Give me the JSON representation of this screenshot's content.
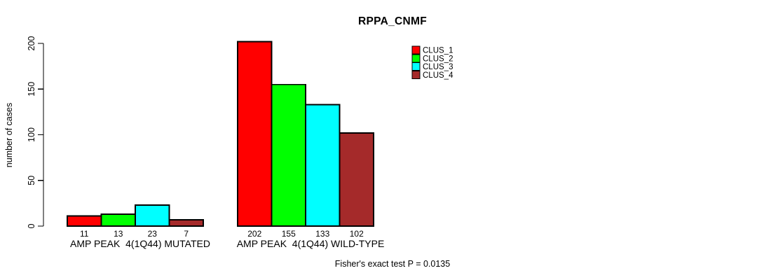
{
  "chart_data": {
    "type": "bar",
    "title": "RPPA_CNMF",
    "ylabel": "number of cases",
    "xlabel": "",
    "footer": "Fisher's exact test P = 0.0135",
    "ylim": [
      0,
      200
    ],
    "y_ticks": [
      0,
      50,
      100,
      150,
      200
    ],
    "grid": false,
    "legend_position": "top-right-inside",
    "categories": [
      "AMP PEAK  4(1Q44) MUTATED",
      "AMP PEAK  4(1Q44) WILD-TYPE"
    ],
    "series": [
      {
        "name": "CLUS_1",
        "color": "#ff0000",
        "values": [
          11,
          202
        ]
      },
      {
        "name": "CLUS_2",
        "color": "#00ff00",
        "values": [
          13,
          155
        ]
      },
      {
        "name": "CLUS_3",
        "color": "#00ffff",
        "values": [
          23,
          133
        ]
      },
      {
        "name": "CLUS_4",
        "color": "#a52a2a",
        "values": [
          7,
          102
        ]
      }
    ],
    "bar_value_labels_shown": true
  },
  "colors": {
    "background": "#ffffff",
    "axis": "#000000",
    "bar_border": "#000000",
    "text": "#000000"
  }
}
